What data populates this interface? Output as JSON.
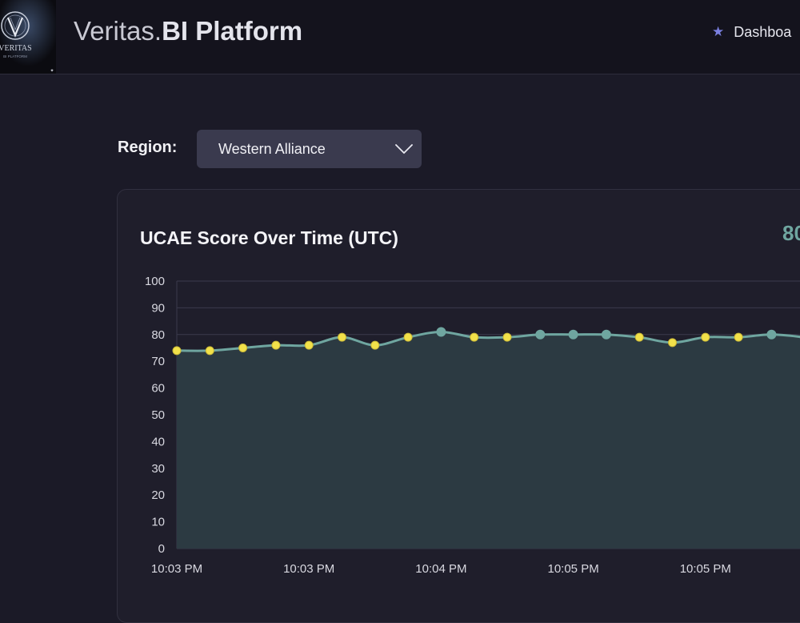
{
  "header": {
    "app_title_light": "Veritas.",
    "app_title_bold": "BI Platform",
    "logo_text": "VERITAS",
    "logo_subtext": "BI PLATFORM",
    "nav_dashboard_label": "Dashboa",
    "nav_dashboard_icon": "star-icon"
  },
  "filters": {
    "region_label": "Region:",
    "region_value": "Western Alliance"
  },
  "card": {
    "title": "UCAE Score Over Time (UTC)",
    "current_score_partial": "80"
  },
  "colors": {
    "line": "#6fa6a0",
    "area": "#2c3a42",
    "point_highlight": "#f2e14a",
    "point_normal": "#6fa6a0",
    "accent_star": "#7a7fe0"
  },
  "chart_data": {
    "type": "area",
    "title": "UCAE Score Over Time (UTC)",
    "xlabel": "",
    "ylabel": "",
    "ylim": [
      0,
      100
    ],
    "y_ticks": [
      0,
      10,
      20,
      30,
      40,
      50,
      60,
      70,
      80,
      90,
      100
    ],
    "x_tick_labels": [
      "10:03 PM",
      "10:03 PM",
      "10:04 PM",
      "10:05 PM",
      "10:05 PM"
    ],
    "grid": true,
    "series": [
      {
        "values": [
          74,
          74,
          75,
          76,
          76,
          79,
          76,
          79,
          81,
          79,
          79,
          80,
          80,
          80,
          79,
          77,
          79,
          79,
          80,
          79
        ],
        "highlighted": [
          true,
          true,
          true,
          true,
          true,
          true,
          true,
          true,
          false,
          true,
          true,
          false,
          false,
          false,
          true,
          true,
          true,
          true,
          false,
          false
        ]
      }
    ]
  }
}
